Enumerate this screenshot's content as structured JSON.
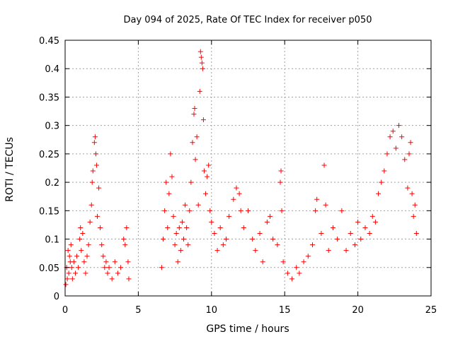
{
  "chart_data": {
    "type": "scatter",
    "title": "Day 094 of 2025, Rate Of TEC Index for receiver p050",
    "xlabel": "GPS time / hours",
    "ylabel": "ROTI / TECUs",
    "xlim": [
      0,
      25
    ],
    "ylim": [
      0,
      0.45
    ],
    "xticks": [
      0,
      5,
      10,
      15,
      20,
      25
    ],
    "yticks": [
      0,
      0.05,
      0.1,
      0.15,
      0.2,
      0.25,
      0.3,
      0.35,
      0.4,
      0.45
    ],
    "ytick_labels": [
      "0",
      "0.05",
      "0.1",
      "0.15",
      "0.2",
      "0.25",
      "0.3",
      "0.35",
      "0.4",
      "0.45"
    ],
    "grid": true,
    "marker": "+",
    "series": [
      {
        "color": "#ff0000",
        "points": [
          [
            0.05,
            0.02
          ],
          [
            0.1,
            0.05
          ],
          [
            0.15,
            0.03
          ],
          [
            0.2,
            0.08
          ],
          [
            0.25,
            0.04
          ],
          [
            0.3,
            0.07
          ],
          [
            0.35,
            0.06
          ],
          [
            0.4,
            0.09
          ],
          [
            0.45,
            0.05
          ],
          [
            0.5,
            0.03
          ],
          [
            0.6,
            0.06
          ],
          [
            0.7,
            0.04
          ],
          [
            0.8,
            0.07
          ],
          [
            0.9,
            0.05
          ],
          [
            1.0,
            0.1
          ],
          [
            1.05,
            0.12
          ],
          [
            1.1,
            0.08
          ],
          [
            1.2,
            0.11
          ],
          [
            1.3,
            0.06
          ],
          [
            1.4,
            0.04
          ],
          [
            1.5,
            0.07
          ],
          [
            1.6,
            0.09
          ],
          [
            1.7,
            0.13
          ],
          [
            1.8,
            0.16
          ],
          [
            1.85,
            0.2
          ],
          [
            1.9,
            0.22
          ],
          [
            2.0,
            0.27
          ],
          [
            2.05,
            0.28
          ],
          [
            2.1,
            0.25
          ],
          [
            2.15,
            0.23
          ],
          [
            2.2,
            0.14
          ],
          [
            2.3,
            0.19
          ],
          [
            2.4,
            0.12
          ],
          [
            2.5,
            0.09
          ],
          [
            2.6,
            0.07
          ],
          [
            2.7,
            0.05
          ],
          [
            2.8,
            0.06
          ],
          [
            2.9,
            0.04
          ],
          [
            3.0,
            0.05
          ],
          [
            3.2,
            0.03
          ],
          [
            3.4,
            0.06
          ],
          [
            3.6,
            0.04
          ],
          [
            3.8,
            0.05
          ],
          [
            4.0,
            0.1
          ],
          [
            4.1,
            0.09
          ],
          [
            4.2,
            0.12
          ],
          [
            4.3,
            0.06
          ],
          [
            4.35,
            0.03
          ],
          [
            6.6,
            0.05
          ],
          [
            6.7,
            0.1
          ],
          [
            6.8,
            0.15
          ],
          [
            6.9,
            0.2
          ],
          [
            7.0,
            0.12
          ],
          [
            7.1,
            0.18
          ],
          [
            7.2,
            0.25
          ],
          [
            7.3,
            0.21
          ],
          [
            7.4,
            0.14
          ],
          [
            7.5,
            0.09
          ],
          [
            7.6,
            0.11
          ],
          [
            7.7,
            0.06
          ],
          [
            7.8,
            0.12
          ],
          [
            7.9,
            0.08
          ],
          [
            8.0,
            0.13
          ],
          [
            8.1,
            0.1
          ],
          [
            8.2,
            0.16
          ],
          [
            8.3,
            0.12
          ],
          [
            8.4,
            0.09
          ],
          [
            8.5,
            0.15
          ],
          [
            8.6,
            0.2
          ],
          [
            8.7,
            0.27
          ],
          [
            8.8,
            0.32
          ],
          [
            8.85,
            0.33
          ],
          [
            8.9,
            0.24
          ],
          [
            9.0,
            0.28
          ],
          [
            9.1,
            0.16
          ],
          [
            9.2,
            0.36
          ],
          [
            9.25,
            0.43
          ],
          [
            9.3,
            0.42
          ],
          [
            9.35,
            0.41
          ],
          [
            9.4,
            0.4
          ],
          [
            9.45,
            0.31
          ],
          [
            9.5,
            0.22
          ],
          [
            9.6,
            0.18
          ],
          [
            9.7,
            0.21
          ],
          [
            9.8,
            0.23
          ],
          [
            9.9,
            0.15
          ],
          [
            10.0,
            0.13
          ],
          [
            10.2,
            0.11
          ],
          [
            10.4,
            0.08
          ],
          [
            10.6,
            0.12
          ],
          [
            10.8,
            0.09
          ],
          [
            11.0,
            0.1
          ],
          [
            11.2,
            0.14
          ],
          [
            11.5,
            0.17
          ],
          [
            11.7,
            0.19
          ],
          [
            11.9,
            0.18
          ],
          [
            12.0,
            0.15
          ],
          [
            12.2,
            0.12
          ],
          [
            12.5,
            0.15
          ],
          [
            12.8,
            0.1
          ],
          [
            13.0,
            0.08
          ],
          [
            13.3,
            0.11
          ],
          [
            13.5,
            0.06
          ],
          [
            13.8,
            0.13
          ],
          [
            14.0,
            0.14
          ],
          [
            14.2,
            0.1
          ],
          [
            14.5,
            0.09
          ],
          [
            14.7,
            0.2
          ],
          [
            14.75,
            0.22
          ],
          [
            14.8,
            0.15
          ],
          [
            14.9,
            0.06
          ],
          [
            15.2,
            0.04
          ],
          [
            15.5,
            0.03
          ],
          [
            15.8,
            0.05
          ],
          [
            16.0,
            0.04
          ],
          [
            16.3,
            0.06
          ],
          [
            16.6,
            0.07
          ],
          [
            16.9,
            0.09
          ],
          [
            17.1,
            0.15
          ],
          [
            17.2,
            0.17
          ],
          [
            17.5,
            0.11
          ],
          [
            17.7,
            0.23
          ],
          [
            17.8,
            0.16
          ],
          [
            18.0,
            0.08
          ],
          [
            18.3,
            0.12
          ],
          [
            18.6,
            0.1
          ],
          [
            18.9,
            0.15
          ],
          [
            19.2,
            0.08
          ],
          [
            19.5,
            0.11
          ],
          [
            19.8,
            0.09
          ],
          [
            20.0,
            0.13
          ],
          [
            20.2,
            0.1
          ],
          [
            20.5,
            0.12
          ],
          [
            20.8,
            0.11
          ],
          [
            21.0,
            0.14
          ],
          [
            21.2,
            0.13
          ],
          [
            21.4,
            0.18
          ],
          [
            21.6,
            0.2
          ],
          [
            21.8,
            0.22
          ],
          [
            22.0,
            0.25
          ],
          [
            22.2,
            0.28
          ],
          [
            22.4,
            0.29
          ],
          [
            22.6,
            0.26
          ],
          [
            22.8,
            0.3
          ],
          [
            23.0,
            0.28
          ],
          [
            23.2,
            0.24
          ],
          [
            23.4,
            0.19
          ],
          [
            23.5,
            0.25
          ],
          [
            23.6,
            0.27
          ],
          [
            23.7,
            0.18
          ],
          [
            23.8,
            0.14
          ],
          [
            23.9,
            0.16
          ],
          [
            24.0,
            0.11
          ]
        ]
      }
    ]
  }
}
